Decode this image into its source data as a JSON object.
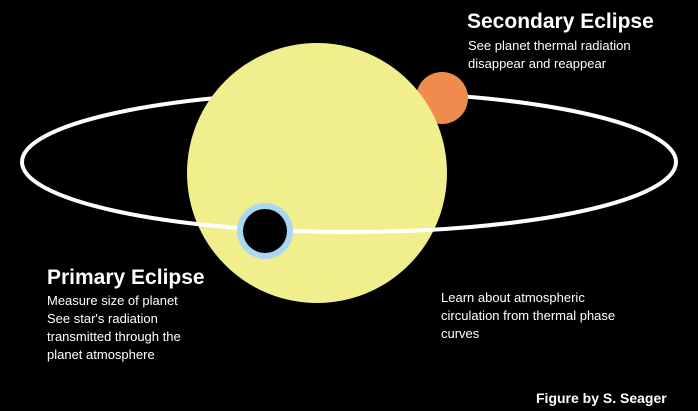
{
  "secondary": {
    "title": "Secondary Eclipse",
    "lines": [
      "See planet thermal radiation",
      "disappear and reappear"
    ]
  },
  "primary": {
    "title": "Primary Eclipse",
    "lines": [
      "Measure size of planet",
      "See star's radiation",
      "transmitted through the",
      "planet atmosphere"
    ]
  },
  "phase": {
    "lines": [
      "Learn about atmospheric",
      "circulation from thermal phase",
      "curves"
    ]
  },
  "credit": "Figure by S. Seager"
}
